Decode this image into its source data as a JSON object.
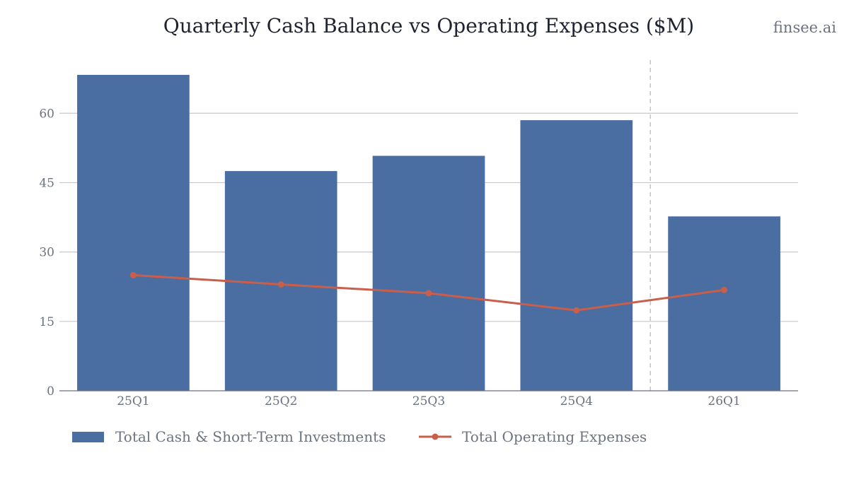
{
  "header": {
    "title": "Quarterly Cash Balance vs Operating Expenses ($M)",
    "brand": "finsee.ai"
  },
  "chart_data": {
    "type": "bar",
    "title": "Quarterly Cash Balance vs Operating Expenses ($M)",
    "xlabel": "",
    "ylabel": "",
    "categories": [
      "25Q1",
      "25Q2",
      "25Q3",
      "25Q4",
      "26Q1"
    ],
    "ylim": [
      0,
      71.5
    ],
    "yticks": [
      0,
      15,
      30,
      45,
      60
    ],
    "grid": true,
    "legend_position": "bottom",
    "divider_after_category": "25Q4",
    "series": [
      {
        "name": "Total Cash & Short-Term Investments",
        "type": "bar",
        "color": "#4a6ea1",
        "values": [
          68.3,
          47.5,
          50.8,
          58.5,
          37.7
        ]
      },
      {
        "name": "Total Operating Expenses",
        "type": "line",
        "color": "#c95f4b",
        "values": [
          25.0,
          23.0,
          21.1,
          17.4,
          21.8
        ]
      }
    ]
  }
}
